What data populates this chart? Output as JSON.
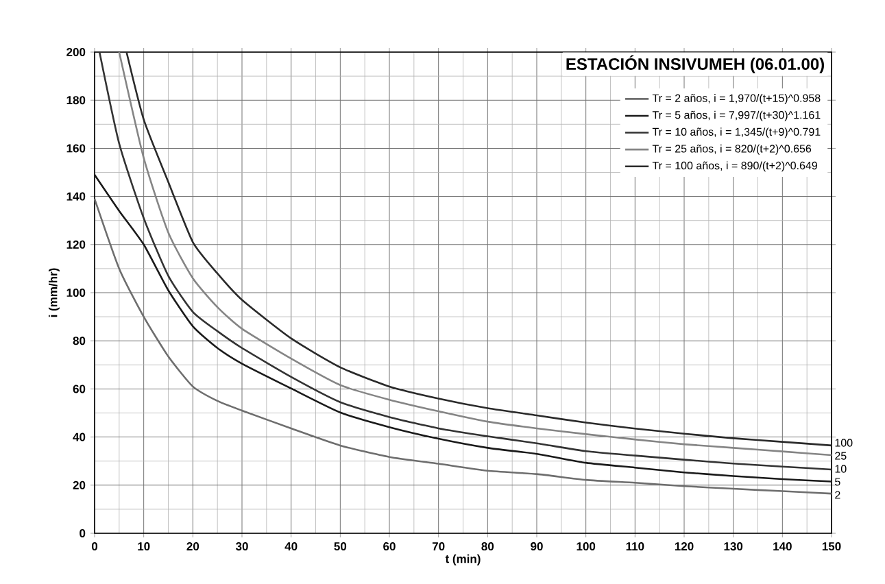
{
  "chart_data": {
    "type": "line",
    "title": "ESTACIÓN INSIVUMEH (06.01.00)",
    "xlabel": "t (min)",
    "ylabel": "i (mm/hr)",
    "xlim": [
      0,
      150
    ],
    "ylim": [
      0,
      200
    ],
    "xticks": [
      0,
      10,
      20,
      30,
      40,
      50,
      60,
      70,
      80,
      90,
      100,
      110,
      120,
      130,
      140,
      150
    ],
    "yticks": [
      0,
      20,
      40,
      60,
      80,
      100,
      120,
      140,
      160,
      180,
      200
    ],
    "grid": true,
    "legend": "top right",
    "marker": "none",
    "line_style": "solid",
    "series": [
      {
        "name": "Tr = 2 años,   i = 1,970/(t+15)^0.958",
        "color": "#6e6e6e",
        "x": [
          0,
          5,
          10,
          15,
          20,
          25,
          30,
          40,
          50,
          60,
          70,
          80,
          90,
          100,
          110,
          120,
          130,
          140,
          150
        ],
        "values": [
          139,
          110,
          90,
          73.5,
          61,
          55,
          51,
          43.6,
          36.5,
          31.7,
          28.9,
          26,
          24.6,
          22.2,
          21,
          19.6,
          18.5,
          17.5,
          16.5
        ]
      },
      {
        "name": "Tr = 5 años,   i = 7,997/(t+30)^1.161",
        "color": "#1a1a1a",
        "x": [
          0,
          5,
          10,
          15,
          20,
          25,
          30,
          40,
          50,
          60,
          70,
          80,
          90,
          100,
          110,
          120,
          130,
          140,
          150
        ],
        "values": [
          149,
          134,
          120,
          101,
          86,
          77,
          70.5,
          60.2,
          50.2,
          44.1,
          39.3,
          35.5,
          33,
          29.3,
          27.3,
          25.3,
          23.8,
          22.5,
          21.5
        ]
      },
      {
        "name": "Tr = 10 años,   i = 1,345/(t+9)^0.791",
        "color": "#333333",
        "x": [
          1,
          5,
          10,
          15,
          20,
          25,
          30,
          40,
          50,
          60,
          70,
          80,
          90,
          100,
          110,
          120,
          130,
          140,
          150
        ],
        "values": [
          200,
          162,
          131,
          107,
          92,
          84,
          77,
          65,
          54.5,
          48.3,
          43.6,
          40.3,
          37.4,
          34.1,
          32.3,
          30.6,
          29,
          27.7,
          26.5
        ]
      },
      {
        "name": "Tr = 25 años,   i = 820/(t+2)^0.656",
        "color": "#858585",
        "x": [
          5,
          10,
          15,
          20,
          25,
          30,
          40,
          50,
          60,
          70,
          80,
          90,
          100,
          110,
          120,
          130,
          140,
          150
        ],
        "values": [
          200,
          156,
          125,
          106,
          94,
          85,
          72.6,
          61.6,
          55.5,
          50.7,
          46.4,
          43.6,
          41.2,
          39,
          37,
          35.5,
          34,
          32.5
        ]
      },
      {
        "name": "Tr = 100 años,   i = 890/(t+2)^0.649",
        "color": "#2a2a2a",
        "x": [
          6.5,
          10,
          15,
          20,
          25,
          30,
          40,
          50,
          60,
          70,
          80,
          90,
          100,
          110,
          120,
          130,
          140,
          150
        ],
        "values": [
          200,
          172,
          146,
          121,
          108,
          97,
          81,
          69,
          61,
          56,
          52,
          49,
          46,
          43.5,
          41.4,
          39.5,
          38,
          36.5
        ]
      }
    ],
    "annotations": [
      "100",
      "25",
      "10",
      "5",
      "2"
    ]
  }
}
